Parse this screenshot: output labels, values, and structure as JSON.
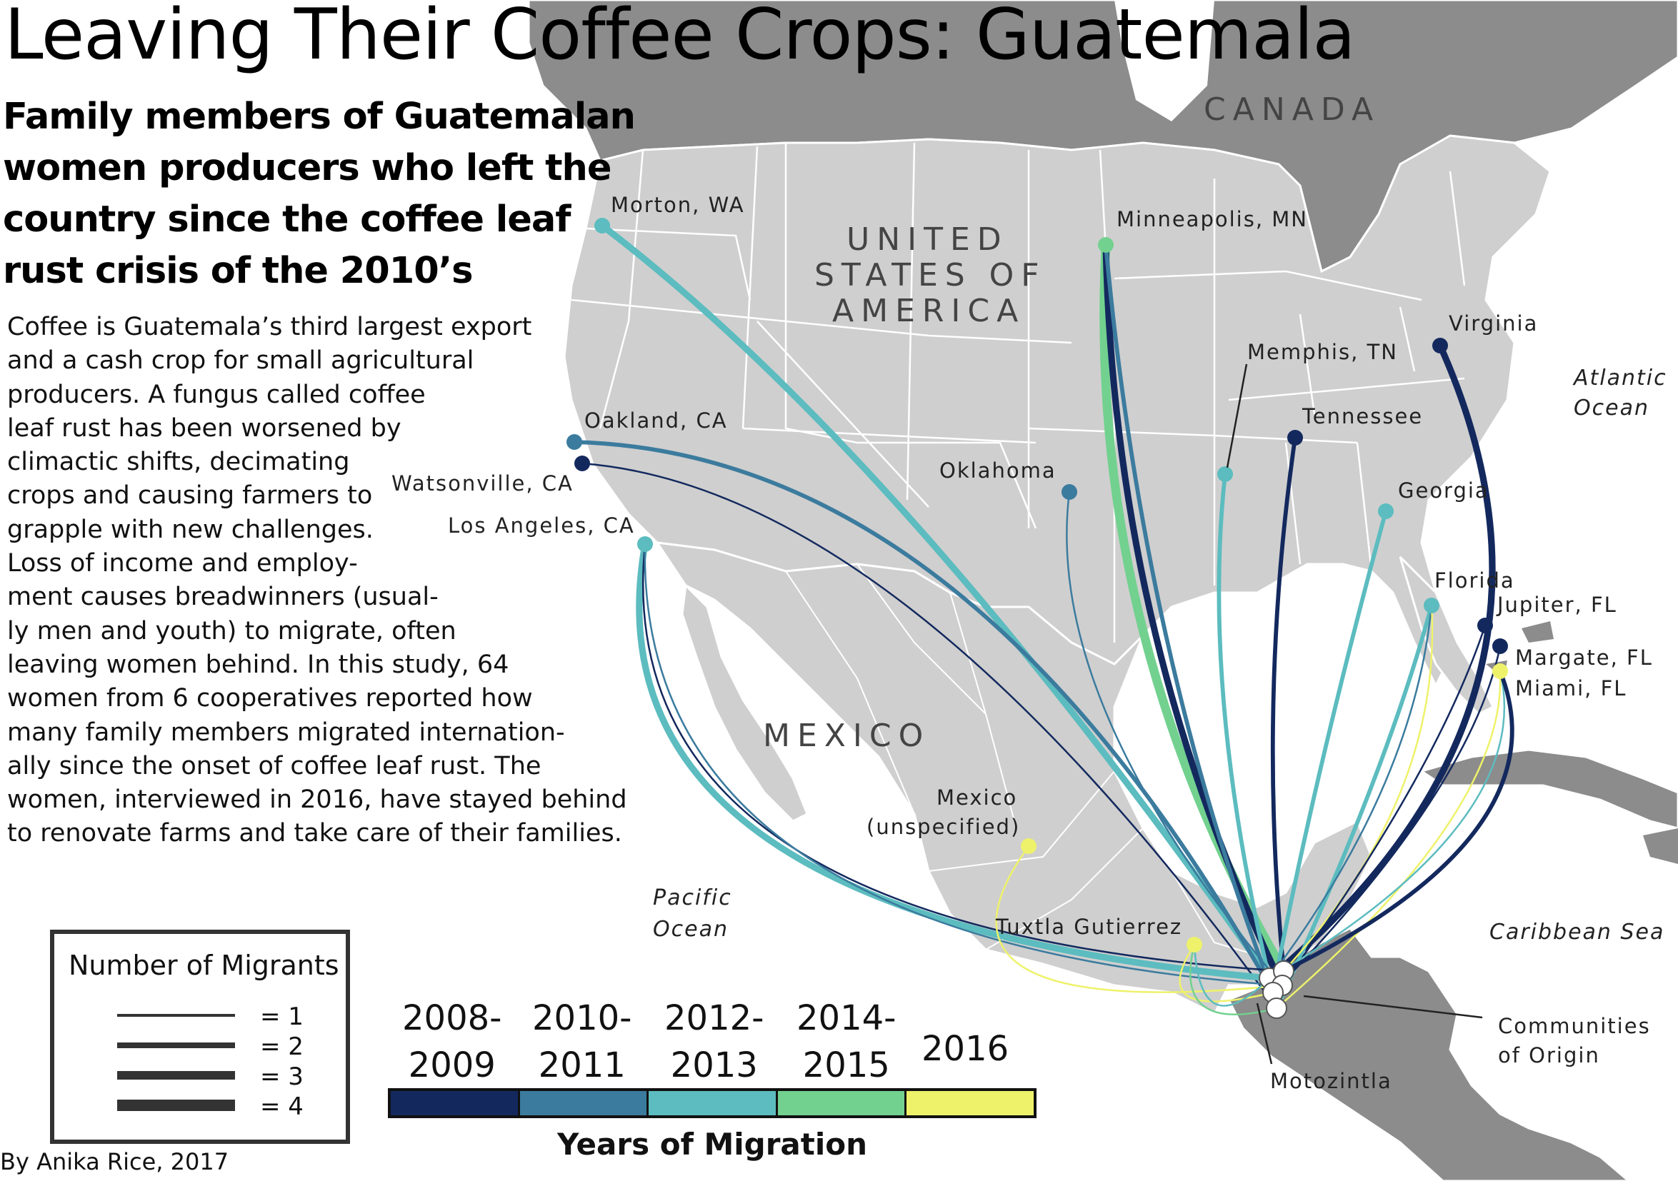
{
  "title": "Leaving Their Coffee Crops: Guatemala",
  "subtitle_lines": [
    "Family members of Guatemalan",
    "women producers who left the",
    "country since the coffee leaf",
    "rust crisis of the 2010’s"
  ],
  "intro_lines": [
    "Coffee is Guatemala’s third largest export",
    "and a cash crop for small agricultural",
    "producers. A fungus called coffee",
    "leaf rust has been worsened by",
    "climactic shifts, decimating",
    "crops and causing farmers to",
    "grapple with new challenges.",
    "Loss of income and employ-",
    "ment causes breadwinners (usual-",
    "ly men and youth) to migrate, often",
    "leaving women behind. In this study, 64",
    "women from 6 cooperatives reported how",
    "many family members migrated internation-",
    "ally since the onset of coffee leaf rust. The",
    "women, interviewed in 2016, have stayed behind",
    "to renovate farms and take care of their families."
  ],
  "countries": {
    "canada": "CANADA",
    "usa_lines": [
      "UNITED",
      "STATES OF",
      "AMERICA"
    ],
    "mexico": "MEXICO"
  },
  "oceans": {
    "atlantic_lines": [
      "Atlantic",
      "Ocean"
    ],
    "pacific_lines": [
      "Pacific",
      "Ocean"
    ],
    "caribbean": "Caribbean Sea"
  },
  "destinations": {
    "morton": "Morton, WA",
    "minneapolis": "Minneapolis, MN",
    "memphis": "Memphis, TN",
    "virginia": "Virginia",
    "tennessee": "Tennessee",
    "oklahoma": "Oklahoma",
    "oakland": "Oakland, CA",
    "watsonville": "Watsonville, CA",
    "los_angeles": "Los Angeles, CA",
    "georgia": "Georgia",
    "florida": "Florida",
    "jupiter": "Jupiter, FL",
    "margate": "Margate, FL",
    "miami": "Miami, FL",
    "mexico_unspecified_lines": [
      "Mexico",
      "(unspecified)"
    ],
    "tuxtla": "Tuxtla Gutierrez",
    "motozintla": "Motozintla"
  },
  "communities_of_origin_lines": [
    "Communities",
    "of Origin"
  ],
  "legend": {
    "title": "Number of Migrants",
    "rows": [
      {
        "label": "= 1",
        "count": 1
      },
      {
        "label": "= 2",
        "count": 2
      },
      {
        "label": "= 3",
        "count": 3
      },
      {
        "label": "= 4",
        "count": 4
      }
    ]
  },
  "year_scale": {
    "title": "Years of Migration",
    "periods": [
      {
        "lines": [
          "2008-",
          "2009"
        ],
        "color": "#13295e"
      },
      {
        "lines": [
          "2010-",
          "2011"
        ],
        "color": "#3b7b9e"
      },
      {
        "lines": [
          "2012-",
          "2013"
        ],
        "color": "#5cbcbf"
      },
      {
        "lines": [
          "2014-",
          "2015"
        ],
        "color": "#72d18f"
      },
      {
        "lines": [
          "2016"
        ],
        "color": "#eef26a"
      }
    ]
  },
  "flows": [
    {
      "to": "Morton, WA",
      "period": 2,
      "migrants": 3
    },
    {
      "to": "Minneapolis, MN",
      "period": 3,
      "migrants": 4
    },
    {
      "to": "Minneapolis, MN",
      "period": 0,
      "migrants": 3
    },
    {
      "to": "Minneapolis, MN",
      "period": 1,
      "migrants": 2
    },
    {
      "to": "Memphis, TN",
      "period": 2,
      "migrants": 2
    },
    {
      "to": "Virginia",
      "period": 0,
      "migrants": 3
    },
    {
      "to": "Tennessee",
      "period": 0,
      "migrants": 2
    },
    {
      "to": "Oklahoma",
      "period": 1,
      "migrants": 1
    },
    {
      "to": "Oakland, CA",
      "period": 1,
      "migrants": 2
    },
    {
      "to": "Watsonville, CA",
      "period": 0,
      "migrants": 1
    },
    {
      "to": "Los Angeles, CA",
      "period": 2,
      "migrants": 3
    },
    {
      "to": "Los Angeles, CA",
      "period": 0,
      "migrants": 1
    },
    {
      "to": "Los Angeles, CA",
      "period": 1,
      "migrants": 1
    },
    {
      "to": "Georgia",
      "period": 2,
      "migrants": 2
    },
    {
      "to": "Florida",
      "period": 2,
      "migrants": 2
    },
    {
      "to": "Florida",
      "period": 1,
      "migrants": 1
    },
    {
      "to": "Florida",
      "period": 4,
      "migrants": 1
    },
    {
      "to": "Jupiter, FL",
      "period": 0,
      "migrants": 1
    },
    {
      "to": "Margate, FL",
      "period": 0,
      "migrants": 1
    },
    {
      "to": "Miami, FL",
      "period": 4,
      "migrants": 1
    },
    {
      "to": "Miami, FL",
      "period": 2,
      "migrants": 1
    },
    {
      "to": "Miami, FL",
      "period": 0,
      "migrants": 2
    },
    {
      "to": "Mexico (unspecified)",
      "period": 4,
      "migrants": 1
    },
    {
      "to": "Tuxtla Gutierrez",
      "period": 4,
      "migrants": 1
    },
    {
      "to": "Tuxtla Gutierrez",
      "period": 3,
      "migrants": 1
    },
    {
      "to": "Tuxtla Gutierrez",
      "period": 2,
      "migrants": 1
    }
  ],
  "credit": "By Anika Rice, 2017"
}
